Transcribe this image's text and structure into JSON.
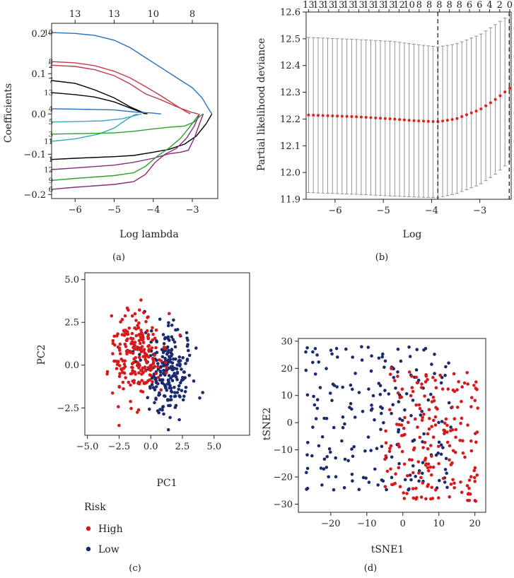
{
  "panels": {
    "a": {
      "label": "(a)"
    },
    "b": {
      "label": "(b)"
    },
    "c": {
      "label": "(c)"
    },
    "d": {
      "label": "(d)"
    }
  },
  "colors": {
    "high": "#d7191c",
    "low": "#1a2a6c",
    "cv": "#e3201b",
    "err": "#8a8a8a"
  },
  "chart_data": [
    {
      "id": "a",
      "type": "line",
      "title": "",
      "xlabel": "Log lambda",
      "ylabel": "Coefficients",
      "xlim": [
        -6.6,
        -2.35
      ],
      "ylim": [
        -0.21,
        0.225
      ],
      "xticks": [
        -6,
        -5,
        -4,
        -3
      ],
      "yticks": [
        -0.2,
        -0.1,
        0.0,
        0.1,
        0.2
      ],
      "ytick_labels": [
        "−0.2",
        "−0.1",
        "0.0",
        "0.1",
        "0.2"
      ],
      "xtick_labels": [
        "−6",
        "−5",
        "−4",
        "−3"
      ],
      "top_axis": {
        "positions": [
          -6,
          -5,
          -4,
          -3
        ],
        "labels": [
          "13",
          "13",
          "10",
          "8"
        ]
      },
      "series": [
        {
          "name": "10",
          "color": "#2a6fbf",
          "points": [
            [
              -6.6,
              0.202
            ],
            [
              -6,
              0.2
            ],
            [
              -5.5,
              0.195
            ],
            [
              -5,
              0.183
            ],
            [
              -4.6,
              0.165
            ],
            [
              -4.2,
              0.14
            ],
            [
              -3.8,
              0.115
            ],
            [
              -3.4,
              0.09
            ],
            [
              -3,
              0.065
            ],
            [
              -2.75,
              0.04
            ],
            [
              -2.6,
              0.015
            ],
            [
              -2.5,
              0
            ]
          ]
        },
        {
          "name": "8",
          "color": "#c53a4a",
          "points": [
            [
              -6.6,
              0.13
            ],
            [
              -6,
              0.127
            ],
            [
              -5.5,
              0.12
            ],
            [
              -5,
              0.106
            ],
            [
              -4.6,
              0.09
            ],
            [
              -4.2,
              0.068
            ],
            [
              -3.8,
              0.045
            ],
            [
              -3.4,
              0.02
            ],
            [
              -3.15,
              0.005
            ],
            [
              -3.05,
              0
            ]
          ]
        },
        {
          "name": "2",
          "color": "#c53a4a",
          "points": [
            [
              -6.6,
              0.121
            ],
            [
              -6,
              0.118
            ],
            [
              -5.5,
              0.11
            ],
            [
              -5,
              0.095
            ],
            [
              -4.6,
              0.075
            ],
            [
              -4.2,
              0.05
            ],
            [
              -3.8,
              0.035
            ],
            [
              -3.4,
              0.018
            ],
            [
              -3.05,
              0.005
            ],
            [
              -2.85,
              0
            ]
          ]
        },
        {
          "name": "7",
          "color": "#000000",
          "points": [
            [
              -6.6,
              0.083
            ],
            [
              -6,
              0.076
            ],
            [
              -5.5,
              0.06
            ],
            [
              -5,
              0.04
            ],
            [
              -4.6,
              0.018
            ],
            [
              -4.3,
              0.005
            ],
            [
              -4.15,
              0
            ]
          ]
        },
        {
          "name": "13",
          "color": "#000000",
          "points": [
            [
              -6.6,
              0.053
            ],
            [
              -6,
              0.048
            ],
            [
              -5.5,
              0.042
            ],
            [
              -5,
              0.03
            ],
            [
              -4.6,
              0.015
            ],
            [
              -4.3,
              0.004
            ],
            [
              -4.2,
              0
            ]
          ]
        },
        {
          "name": "4",
          "color": "#2a6fbf",
          "points": [
            [
              -6.6,
              0.013
            ],
            [
              -6,
              0.012
            ],
            [
              -5,
              0.01
            ],
            [
              -4.5,
              0.005
            ],
            [
              -4,
              0.002
            ],
            [
              -3.8,
              0
            ]
          ]
        },
        {
          "name": "5",
          "color": "#3aa8c2",
          "points": [
            [
              -6.6,
              -0.02
            ],
            [
              -6,
              -0.019
            ],
            [
              -5.3,
              -0.017
            ],
            [
              -4.8,
              -0.012
            ],
            [
              -4.5,
              -0.005
            ],
            [
              -4.3,
              0
            ]
          ]
        },
        {
          "name": "11",
          "color": "#3aa8c2",
          "points": [
            [
              -6.6,
              -0.068
            ],
            [
              -6,
              -0.062
            ],
            [
              -5.4,
              -0.05
            ],
            [
              -5,
              -0.035
            ],
            [
              -4.7,
              -0.015
            ],
            [
              -4.5,
              -0.003
            ],
            [
              -4.4,
              0
            ]
          ]
        },
        {
          "name": "3",
          "color": "#2ea02e",
          "points": [
            [
              -6.6,
              -0.05
            ],
            [
              -6,
              -0.049
            ],
            [
              -5,
              -0.047
            ],
            [
              -4.5,
              -0.043
            ],
            [
              -4,
              -0.037
            ],
            [
              -3.6,
              -0.033
            ],
            [
              -3.2,
              -0.03
            ],
            [
              -2.95,
              -0.02
            ],
            [
              -2.8,
              -0.005
            ],
            [
              -2.72,
              0
            ]
          ]
        },
        {
          "name": "1",
          "color": "#000000",
          "points": [
            [
              -6.6,
              -0.113
            ],
            [
              -6,
              -0.11
            ],
            [
              -5,
              -0.106
            ],
            [
              -4.5,
              -0.103
            ],
            [
              -4,
              -0.095
            ],
            [
              -3.6,
              -0.088
            ],
            [
              -3.2,
              -0.075
            ],
            [
              -2.9,
              -0.055
            ],
            [
              -2.65,
              -0.025
            ],
            [
              -2.5,
              0
            ]
          ]
        },
        {
          "name": "12",
          "color": "#8b2a7b",
          "points": [
            [
              -6.6,
              -0.138
            ],
            [
              -6,
              -0.134
            ],
            [
              -5,
              -0.127
            ],
            [
              -4.5,
              -0.12
            ],
            [
              -4,
              -0.11
            ],
            [
              -3.6,
              -0.099
            ],
            [
              -3.3,
              -0.095
            ],
            [
              -3.1,
              -0.09
            ],
            [
              -2.95,
              -0.06
            ],
            [
              -2.8,
              -0.02
            ],
            [
              -2.72,
              0
            ]
          ]
        },
        {
          "name": "9",
          "color": "#2ea02e",
          "points": [
            [
              -6.6,
              -0.165
            ],
            [
              -6,
              -0.16
            ],
            [
              -5,
              -0.153
            ],
            [
              -4.5,
              -0.146
            ],
            [
              -4.2,
              -0.13
            ],
            [
              -3.9,
              -0.105
            ],
            [
              -3.6,
              -0.085
            ],
            [
              -3.3,
              -0.06
            ],
            [
              -3.05,
              -0.03
            ],
            [
              -2.9,
              -0.01
            ],
            [
              -2.82,
              0
            ]
          ]
        },
        {
          "name": "6",
          "color": "#8b2a7b",
          "points": [
            [
              -6.6,
              -0.187
            ],
            [
              -6,
              -0.182
            ],
            [
              -5,
              -0.175
            ],
            [
              -4.5,
              -0.168
            ],
            [
              -4.2,
              -0.15
            ],
            [
              -3.95,
              -0.12
            ],
            [
              -3.7,
              -0.1
            ],
            [
              -3.4,
              -0.085
            ],
            [
              -3.15,
              -0.06
            ],
            [
              -2.95,
              -0.03
            ],
            [
              -2.82,
              0
            ]
          ]
        }
      ]
    },
    {
      "id": "b",
      "type": "errorbar",
      "xlabel": "Log",
      "ylabel": "Partial likelihood deviance",
      "xlim": [
        -6.6,
        -2.35
      ],
      "ylim": [
        11.9,
        12.6
      ],
      "xticks": [
        -6,
        -5,
        -4,
        -3
      ],
      "xtick_labels": [
        "−6",
        "−5",
        "−4",
        "−3"
      ],
      "yticks": [
        11.9,
        12.0,
        12.1,
        12.2,
        12.3,
        12.4,
        12.5,
        12.6
      ],
      "ytick_labels": [
        "11.9",
        "12.0",
        "12.1",
        "12.2",
        "12.3",
        "12.4",
        "12.5",
        "12.6"
      ],
      "top_axis_labels": [
        "13",
        "13",
        "13",
        "13",
        "13",
        "13",
        "13",
        "13",
        "13",
        "12",
        "10",
        "8",
        "8",
        "8",
        "8",
        "8",
        "6",
        "6",
        "4",
        "2",
        "0"
      ],
      "lambda_min": -3.87,
      "lambda_1se": -2.39,
      "x_start": -6.55,
      "x_end": -2.38,
      "n_points": 43,
      "mean_profile": [
        [
          -6.55,
          12.215
        ],
        [
          -5.5,
          12.208
        ],
        [
          -4.8,
          12.2
        ],
        [
          -4.3,
          12.193
        ],
        [
          -3.87,
          12.19
        ],
        [
          -3.5,
          12.2
        ],
        [
          -3.0,
          12.235
        ],
        [
          -2.7,
          12.27
        ],
        [
          -2.38,
          12.315
        ]
      ],
      "upper_profile": [
        [
          -6.55,
          12.505
        ],
        [
          -5.5,
          12.497
        ],
        [
          -4.8,
          12.49
        ],
        [
          -4.3,
          12.478
        ],
        [
          -3.87,
          12.47
        ],
        [
          -3.5,
          12.48
        ],
        [
          -3.0,
          12.515
        ],
        [
          -2.7,
          12.55
        ],
        [
          -2.38,
          12.59
        ]
      ],
      "lower_profile": [
        [
          -6.55,
          11.925
        ],
        [
          -5.5,
          11.918
        ],
        [
          -4.8,
          11.912
        ],
        [
          -4.3,
          11.908
        ],
        [
          -3.87,
          11.906
        ],
        [
          -3.5,
          11.92
        ],
        [
          -3.0,
          11.955
        ],
        [
          -2.7,
          11.99
        ],
        [
          -2.38,
          12.04
        ]
      ]
    },
    {
      "id": "c",
      "type": "scatter",
      "xlabel": "PC1",
      "ylabel": "PC2",
      "xlim": [
        -5.2,
        7.8
      ],
      "ylim": [
        -4.1,
        5.4
      ],
      "xticks": [
        -5,
        -2.5,
        0,
        2.5,
        5
      ],
      "xtick_labels": [
        "−5.0",
        "−2.5",
        "0.0",
        "2.5",
        "5.0"
      ],
      "yticks": [
        -2.5,
        0,
        2.5,
        5
      ],
      "ytick_labels": [
        "−2.5",
        "0.0",
        "2.5",
        "5.0"
      ],
      "legend": {
        "title": "Risk",
        "entries": [
          "High",
          "Low"
        ]
      },
      "n_high": 230,
      "n_low": 230,
      "high_center": [
        -1.0,
        0.6
      ],
      "high_spread": [
        1.0,
        1.25
      ],
      "low_center": [
        1.3,
        -0.4
      ],
      "low_spread": [
        1.0,
        1.15
      ]
    },
    {
      "id": "d",
      "type": "scatter",
      "xlabel": "tSNE1",
      "ylabel": "tSNE2",
      "xlim": [
        -29,
        23
      ],
      "ylim": [
        -33,
        31
      ],
      "xticks": [
        -20,
        -10,
        0,
        10,
        20
      ],
      "xtick_labels": [
        "−20",
        "−10",
        "0",
        "10",
        "20"
      ],
      "yticks": [
        -30,
        -20,
        -10,
        0,
        10,
        20,
        30
      ],
      "ytick_labels": [
        "−30",
        "−20",
        "−10",
        "0",
        "10",
        "20",
        "30"
      ],
      "n_high": 200,
      "n_low": 200,
      "high_region": {
        "x": [
          -5,
          21
        ],
        "y": [
          -29,
          20
        ]
      },
      "low_region": {
        "x": [
          -27,
          14
        ],
        "y": [
          -25,
          28
        ]
      }
    }
  ]
}
